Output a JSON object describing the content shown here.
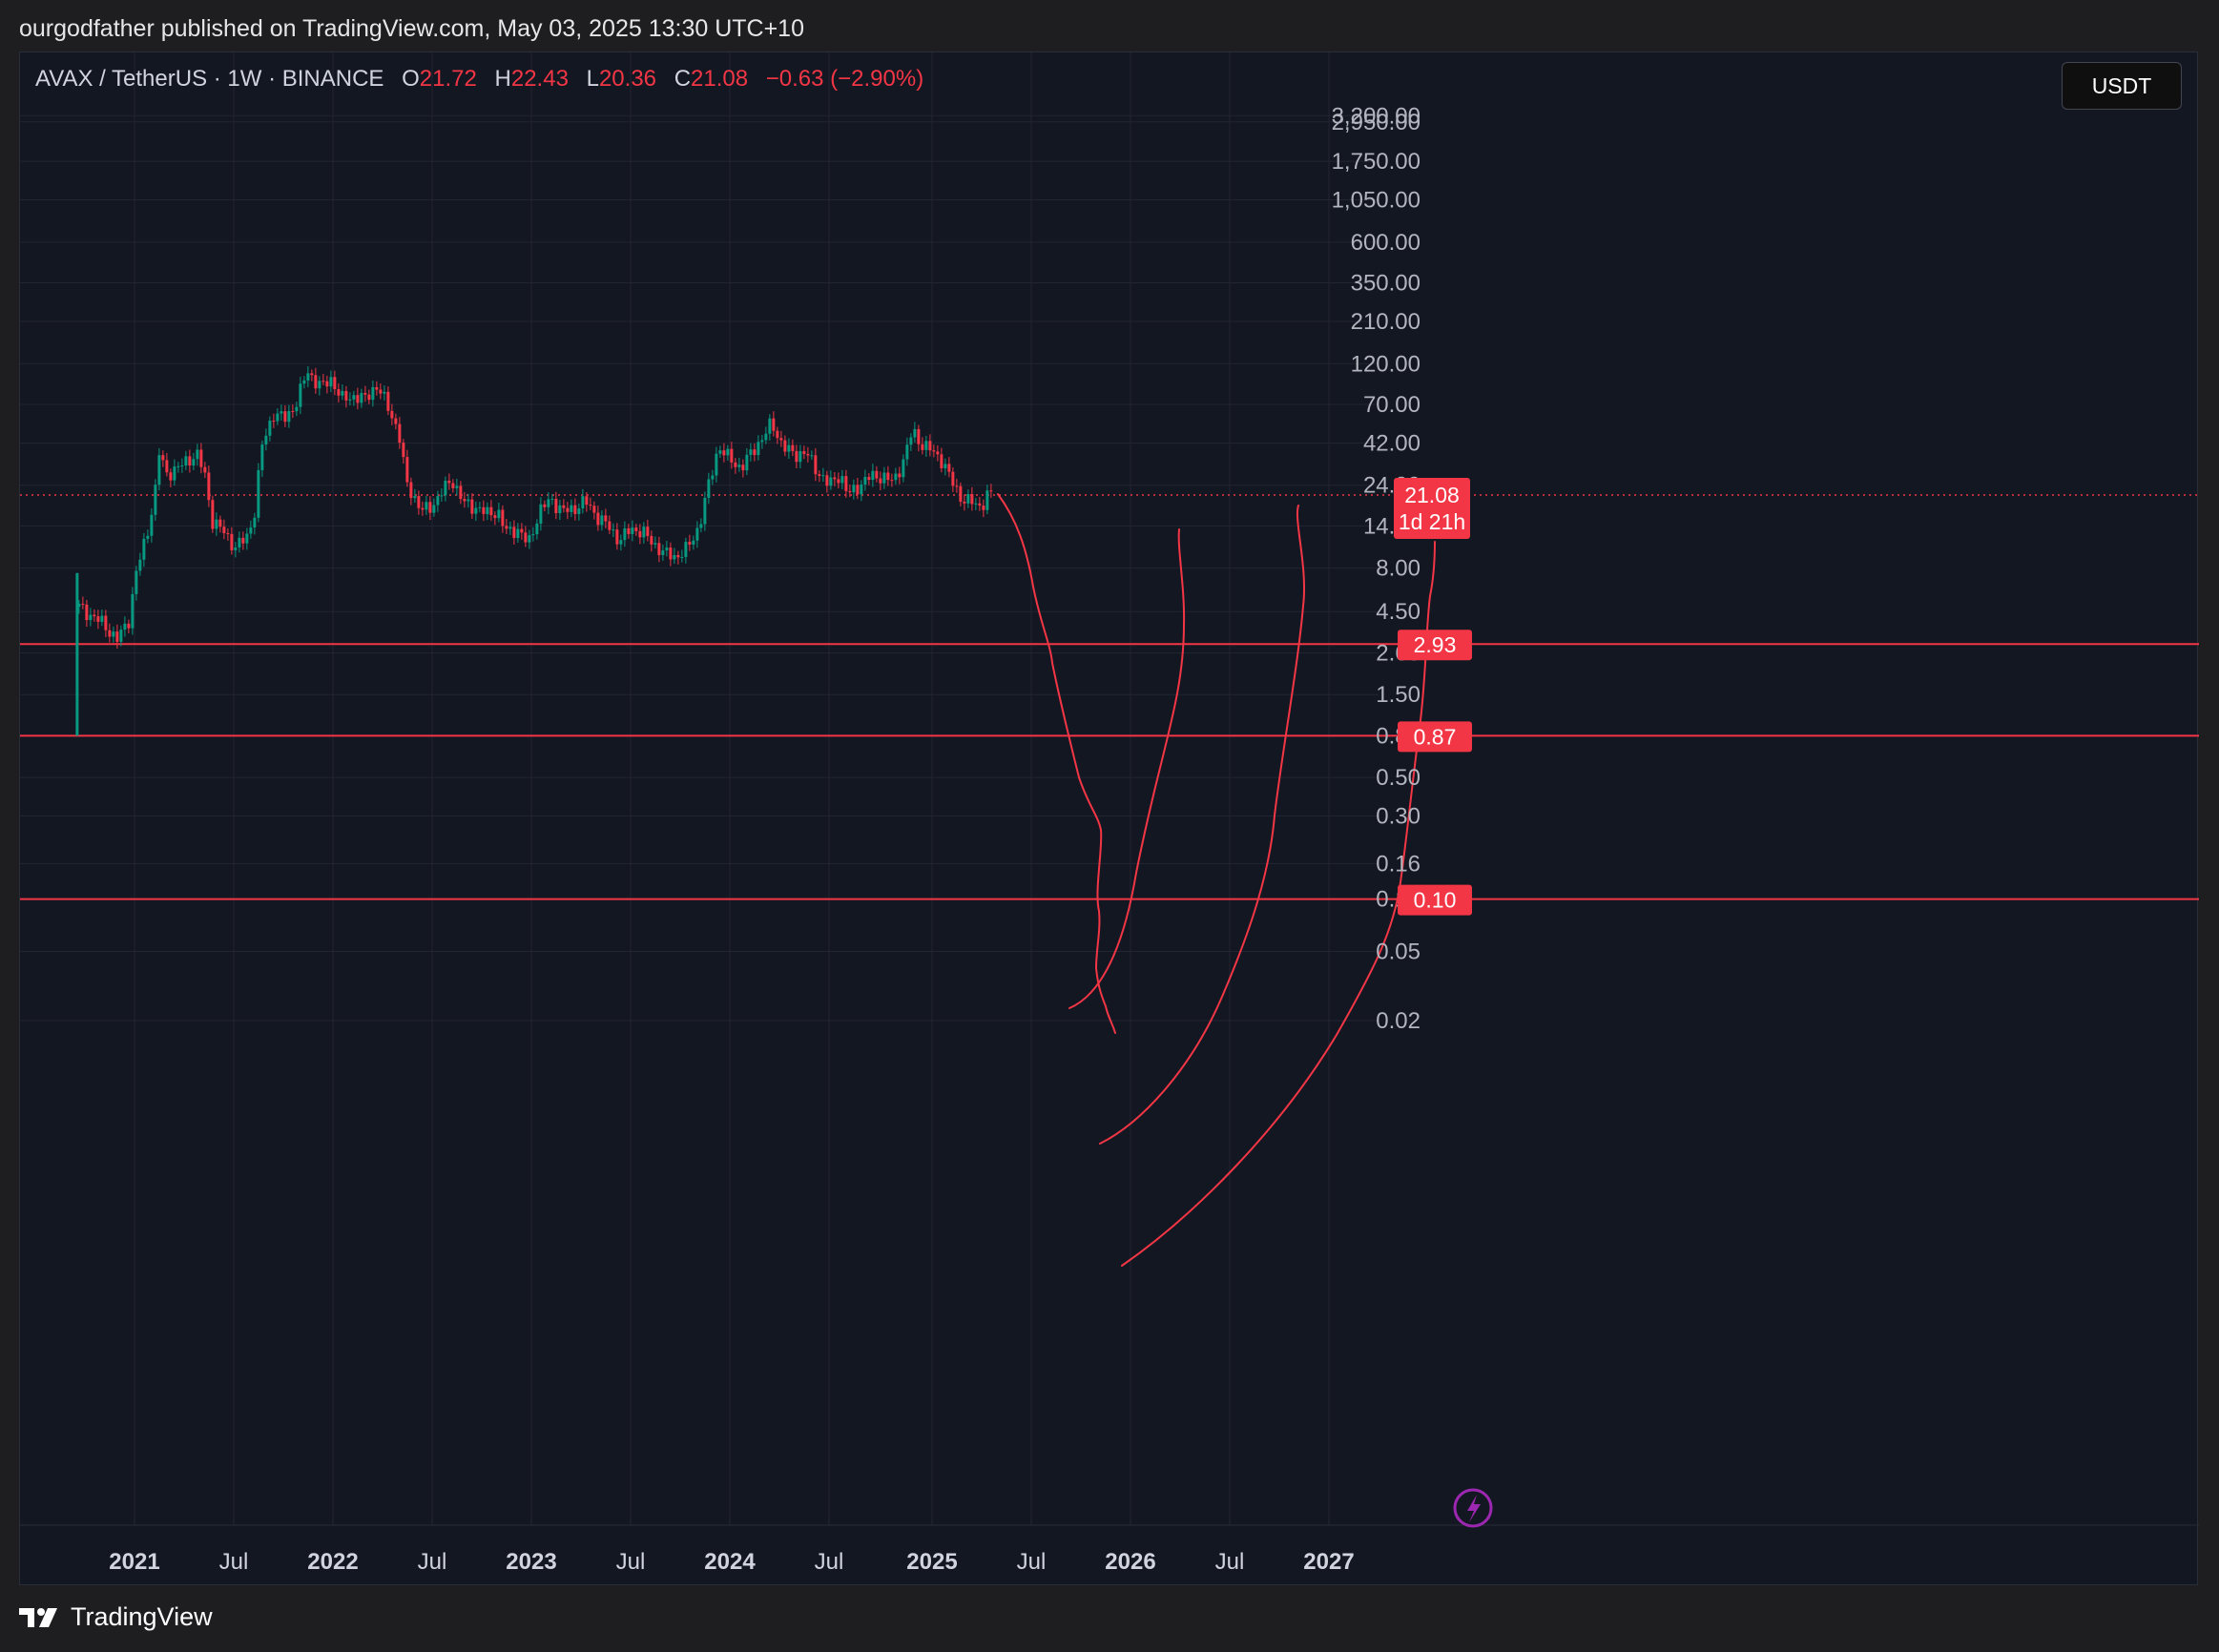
{
  "header": {
    "published_text": "ourgodfather published on TradingView.com, May 03, 2025 13:30 UTC+10"
  },
  "legend": {
    "symbol": "AVAX / TetherUS · 1W · BINANCE",
    "open_label": "O",
    "open_value": "21.72",
    "high_label": "H",
    "high_value": "22.43",
    "low_label": "L",
    "low_value": "20.36",
    "close_label": "C",
    "close_value": "21.08",
    "change": "−0.63 (−2.90%)"
  },
  "currency_button": "USDT",
  "price_badge": {
    "price": "21.08",
    "countdown": "1d 21h"
  },
  "level_badges": [
    "2.93",
    "0.87",
    "0.10"
  ],
  "footer": {
    "brand": "TradingView"
  },
  "colors": {
    "background": "#131722",
    "up": "#089981",
    "down": "#f23645",
    "grid": "#232632",
    "drawing": "#f23645"
  },
  "chart_data": {
    "type": "candlestick",
    "scale": "log",
    "timeframe": "1W",
    "y_ticks": [
      "3,200.00",
      "2,950.00",
      "1,750.00",
      "1,050.00",
      "600.00",
      "350.00",
      "210.00",
      "120.00",
      "70.00",
      "42.00",
      "24.00",
      "14.00",
      "8.00",
      "4.50",
      "2.60",
      "1.50",
      "0.87",
      "0.50",
      "0.30",
      "0.16",
      "0.10",
      "0.05",
      "0.02"
    ],
    "x_ticks": [
      {
        "label": "2021",
        "bold": true
      },
      {
        "label": "Jul",
        "bold": false
      },
      {
        "label": "2022",
        "bold": true
      },
      {
        "label": "Jul",
        "bold": false
      },
      {
        "label": "2023",
        "bold": true
      },
      {
        "label": "Jul",
        "bold": false
      },
      {
        "label": "2024",
        "bold": true
      },
      {
        "label": "Jul",
        "bold": false
      },
      {
        "label": "2025",
        "bold": true
      },
      {
        "label": "Jul",
        "bold": false
      },
      {
        "label": "2026",
        "bold": true
      },
      {
        "label": "Jul",
        "bold": false
      },
      {
        "label": "2027",
        "bold": true
      }
    ],
    "horizontal_levels": [
      2.93,
      0.87,
      0.1
    ],
    "last_price": 21.08,
    "price_path": [
      [
        "2020-09-21",
        4.8
      ],
      [
        "2020-10-12",
        4.3
      ],
      [
        "2020-11-02",
        3.9
      ],
      [
        "2020-11-30",
        3.1
      ],
      [
        "2020-12-21",
        4.0
      ],
      [
        "2021-01-04",
        7.5
      ],
      [
        "2021-01-25",
        13
      ],
      [
        "2021-02-08",
        22
      ],
      [
        "2021-02-15",
        37
      ],
      [
        "2021-03-01",
        28
      ],
      [
        "2021-03-22",
        30
      ],
      [
        "2021-04-05",
        33
      ],
      [
        "2021-04-26",
        36
      ],
      [
        "2021-05-10",
        28
      ],
      [
        "2021-05-24",
        15
      ],
      [
        "2021-06-14",
        13
      ],
      [
        "2021-07-05",
        10.5
      ],
      [
        "2021-07-26",
        12
      ],
      [
        "2021-08-09",
        16
      ],
      [
        "2021-08-23",
        40
      ],
      [
        "2021-09-13",
        62
      ],
      [
        "2021-10-04",
        58
      ],
      [
        "2021-10-25",
        70
      ],
      [
        "2021-11-15",
        110
      ],
      [
        "2021-11-29",
        95
      ],
      [
        "2021-12-13",
        88
      ],
      [
        "2021-12-27",
        100
      ],
      [
        "2022-01-17",
        75
      ],
      [
        "2022-02-07",
        78
      ],
      [
        "2022-02-28",
        75
      ],
      [
        "2022-03-21",
        90
      ],
      [
        "2022-04-11",
        70
      ],
      [
        "2022-05-02",
        48
      ],
      [
        "2022-05-16",
        25
      ],
      [
        "2022-06-13",
        17
      ],
      [
        "2022-07-04",
        18.5
      ],
      [
        "2022-07-25",
        23
      ],
      [
        "2022-08-08",
        26
      ],
      [
        "2022-08-29",
        19
      ],
      [
        "2022-09-19",
        18
      ],
      [
        "2022-10-10",
        16.5
      ],
      [
        "2022-10-31",
        17
      ],
      [
        "2022-11-14",
        13
      ],
      [
        "2022-12-05",
        13.5
      ],
      [
        "2022-12-26",
        11
      ],
      [
        "2023-01-16",
        17
      ],
      [
        "2023-02-06",
        20
      ],
      [
        "2023-02-27",
        17
      ],
      [
        "2023-03-20",
        17.5
      ],
      [
        "2023-04-10",
        19.5
      ],
      [
        "2023-05-01",
        16
      ],
      [
        "2023-05-22",
        14
      ],
      [
        "2023-06-12",
        11.5
      ],
      [
        "2023-07-03",
        13.5
      ],
      [
        "2023-07-24",
        13
      ],
      [
        "2023-08-14",
        11
      ],
      [
        "2023-09-04",
        9.7
      ],
      [
        "2023-09-25",
        9.3
      ],
      [
        "2023-10-16",
        10.5
      ],
      [
        "2023-11-06",
        14
      ],
      [
        "2023-11-20",
        22
      ],
      [
        "2023-12-11",
        40
      ],
      [
        "2024-01-01",
        34
      ],
      [
        "2024-01-22",
        30
      ],
      [
        "2024-02-12",
        38
      ],
      [
        "2024-03-04",
        46
      ],
      [
        "2024-03-18",
        55
      ],
      [
        "2024-04-08",
        40
      ],
      [
        "2024-04-29",
        36
      ],
      [
        "2024-05-20",
        37
      ],
      [
        "2024-06-10",
        29
      ],
      [
        "2024-07-01",
        24
      ],
      [
        "2024-07-22",
        28
      ],
      [
        "2024-08-05",
        21
      ],
      [
        "2024-08-26",
        24
      ],
      [
        "2024-09-16",
        27
      ],
      [
        "2024-10-07",
        27
      ],
      [
        "2024-10-28",
        25
      ],
      [
        "2024-11-18",
        35
      ],
      [
        "2024-12-02",
        50
      ],
      [
        "2024-12-16",
        42
      ],
      [
        "2025-01-06",
        38
      ],
      [
        "2025-01-27",
        33
      ],
      [
        "2025-02-10",
        26
      ],
      [
        "2025-03-03",
        20
      ],
      [
        "2025-03-24",
        19
      ],
      [
        "2025-04-07",
        18
      ],
      [
        "2025-04-21",
        21.7
      ],
      [
        "2025-04-28",
        21.08
      ]
    ]
  }
}
